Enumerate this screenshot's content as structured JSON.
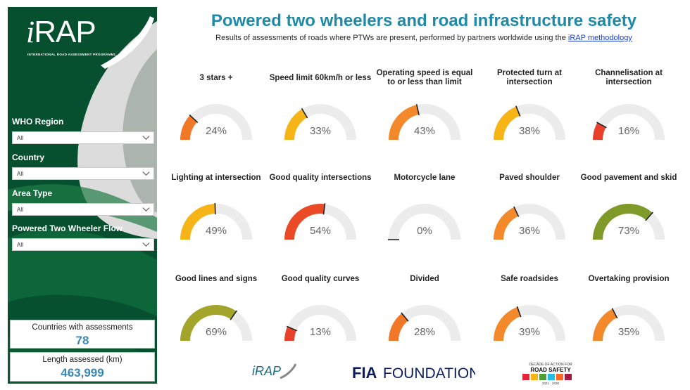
{
  "header": {
    "title": "Powered two wheelers and road infrastructure safety",
    "subtitle_prefix": "Results of assessments of roads where PTWs are present, performed by partners worldwide using the ",
    "subtitle_link": "iRAP methodology"
  },
  "sidebar": {
    "logo_text": "RAP",
    "logo_prefix": "i",
    "logo_subtitle": "INTERNATIONAL ROAD ASSESSMENT PROGRAMME",
    "filters": [
      {
        "label": "WHO Region",
        "value": "All"
      },
      {
        "label": "Country",
        "value": "All"
      },
      {
        "label": "Area Type",
        "value": "All"
      },
      {
        "label": "Powered Two Wheeler Flow",
        "value": "All"
      }
    ],
    "stats": [
      {
        "label": "Countries with assessments",
        "value": "78"
      },
      {
        "label": "Length assessed (km)",
        "value": "463,999"
      }
    ]
  },
  "gauges": [
    {
      "label": "3 stars +",
      "value_text": "24%",
      "value": 24,
      "color": "#f07826"
    },
    {
      "label": "Speed limit 60km/h or less",
      "value_text": "33%",
      "value": 33,
      "color": "#f7b417"
    },
    {
      "label": "Operating speed is equal to or less than limit",
      "value_text": "43%",
      "value": 43,
      "color": "#f3892a"
    },
    {
      "label": "Protected turn at intersection",
      "value_text": "38%",
      "value": 38,
      "color": "#f7b417"
    },
    {
      "label": "Channelisation at intersection",
      "value_text": "16%",
      "value": 16,
      "color": "#e9402b"
    },
    {
      "label": "Lighting at intersection",
      "value_text": "49%",
      "value": 49,
      "color": "#f7b417"
    },
    {
      "label": "Good quality intersections",
      "value_text": "54%",
      "value": 54,
      "color": "#ea4a25"
    },
    {
      "label": "Motorcycle lane",
      "value_text": "0%",
      "value": 0,
      "color": "#e9402b"
    },
    {
      "label": "Paved shoulder",
      "value_text": "36%",
      "value": 36,
      "color": "#f3892a"
    },
    {
      "label": "Good pavement and skid",
      "value_text": "73%",
      "value": 73,
      "color": "#7f9a29"
    },
    {
      "label": "Good lines and signs",
      "value_text": "69%",
      "value": 69,
      "color": "#a3a42a"
    },
    {
      "label": "Good quality curves",
      "value_text": "13%",
      "value": 13,
      "color": "#e9402b"
    },
    {
      "label": "Divided",
      "value_text": "28%",
      "value": 28,
      "color": "#f07826"
    },
    {
      "label": "Safe roadsides",
      "value_text": "39%",
      "value": 39,
      "color": "#f3892a"
    },
    {
      "label": "Overtaking provision",
      "value_text": "35%",
      "value": 35,
      "color": "#f3892a"
    }
  ],
  "footer": {
    "logo1": "iRAP",
    "logo2": "FOUNDATION",
    "logo2_prefix": "FIA",
    "logo3_top": "DECADE OF ACTION FOR",
    "logo3_main": "ROAD SAFETY",
    "logo3_years": "2021 - 2030"
  }
}
